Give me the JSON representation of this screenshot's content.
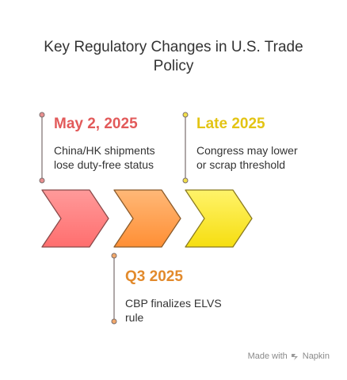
{
  "title_line1": "Key Regulatory Changes in U.S. Trade",
  "title_line2": "Policy",
  "steps": [
    {
      "date": "May 2, 2025",
      "desc_line1": "China/HK shipments",
      "desc_line2": "lose duty-free status",
      "date_color": "#e25a5a",
      "arrow_color": "#ff7f7f"
    },
    {
      "date": "Q3 2025",
      "desc_line1": "CBP finalizes ELVS",
      "desc_line2": "rule",
      "date_color": "#e28a2c",
      "arrow_color": "#ff9d4a"
    },
    {
      "date": "Late 2025",
      "desc_line1": "Congress may lower",
      "desc_line2": "or scrap threshold",
      "date_color": "#e3c414",
      "arrow_color": "#f9e227"
    }
  ],
  "brand": {
    "made_with": "Made with",
    "name": "Napkin"
  }
}
